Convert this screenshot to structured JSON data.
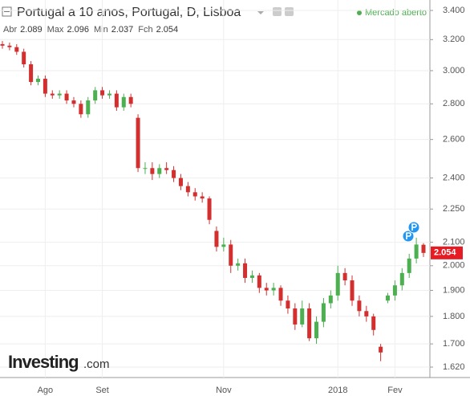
{
  "chart_data": {
    "type": "candlestick",
    "title": "Portugal a 10 anos, Portugal, D, Lisboa",
    "status": "Mercado aberto",
    "ohlc_labels": [
      "Abr",
      "Max",
      "Min",
      "Fch"
    ],
    "watermark": "Investing",
    "watermark_suffix": ".com",
    "log_scale": true,
    "grid": true,
    "up_color": "#4caf50",
    "down_color": "#d32f2f",
    "ylim": [
      1.62,
      3.4
    ],
    "yticks": [
      {
        "value": 3.4,
        "label": "3.400"
      },
      {
        "value": 3.2,
        "label": "3.200"
      },
      {
        "value": 3,
        "label": "3.000"
      },
      {
        "value": 2.8,
        "label": "2.800"
      },
      {
        "value": 2.6,
        "label": "2.600"
      },
      {
        "value": 2.4,
        "label": "2.400"
      },
      {
        "value": 2.25,
        "label": "2.250"
      },
      {
        "value": 2.1,
        "label": "2.100"
      },
      {
        "value": 2,
        "label": "2.000"
      },
      {
        "value": 1.9,
        "label": "1.900"
      },
      {
        "value": 1.8,
        "label": "1.800"
      },
      {
        "value": 1.7,
        "label": "1.700"
      },
      {
        "value": 1.62,
        "label": "1.620"
      }
    ],
    "categories": [
      null,
      null,
      null,
      null,
      null,
      null,
      "Ago",
      null,
      null,
      null,
      null,
      null,
      null,
      null,
      "Set",
      null,
      null,
      null,
      null,
      null,
      null,
      null,
      null,
      null,
      null,
      null,
      null,
      null,
      null,
      null,
      null,
      "Nov",
      null,
      null,
      null,
      null,
      null,
      null,
      null,
      null,
      null,
      null,
      null,
      null,
      null,
      null,
      null,
      "2018",
      null,
      null,
      null,
      null,
      null,
      null,
      null,
      "Fev",
      null,
      null,
      null,
      null
    ],
    "open": [
      3.17,
      3.16,
      3.15,
      3.12,
      3.04,
      2.93,
      2.95,
      2.86,
      2.85,
      2.86,
      2.82,
      2.8,
      2.74,
      2.82,
      2.88,
      2.85,
      2.86,
      2.78,
      2.84,
      2.72,
      2.45,
      2.45,
      2.42,
      2.45,
      2.44,
      2.4,
      2.36,
      2.33,
      2.31,
      2.3,
      2.15,
      2.08,
      2.09,
      2.0,
      2.01,
      1.95,
      1.96,
      1.91,
      1.9,
      1.91,
      1.86,
      1.83,
      1.77,
      1.83,
      1.72,
      1.78,
      1.85,
      1.88,
      1.97,
      1.94,
      1.86,
      1.82,
      1.8,
      1.69,
      1.86,
      1.88,
      1.92,
      1.97,
      2.03,
      2.089
    ],
    "high": [
      3.19,
      3.18,
      3.17,
      3.14,
      3.06,
      2.97,
      2.97,
      2.88,
      2.88,
      2.88,
      2.84,
      2.82,
      2.84,
      2.9,
      2.9,
      2.88,
      2.88,
      2.86,
      2.86,
      2.74,
      2.48,
      2.48,
      2.47,
      2.48,
      2.46,
      2.42,
      2.38,
      2.35,
      2.33,
      2.31,
      2.17,
      2.12,
      2.11,
      2.03,
      2.03,
      1.98,
      1.97,
      1.93,
      1.93,
      1.92,
      1.88,
      1.85,
      1.86,
      1.85,
      1.8,
      1.87,
      1.9,
      2.0,
      1.99,
      1.96,
      1.88,
      1.84,
      1.81,
      1.7,
      1.89,
      1.94,
      1.99,
      2.05,
      2.12,
      2.096
    ],
    "low": [
      3.14,
      3.13,
      3.1,
      3.02,
      2.91,
      2.91,
      2.84,
      2.83,
      2.83,
      2.8,
      2.78,
      2.72,
      2.72,
      2.8,
      2.83,
      2.83,
      2.76,
      2.76,
      2.78,
      2.43,
      2.42,
      2.39,
      2.4,
      2.42,
      2.38,
      2.34,
      2.31,
      2.29,
      2.28,
      2.18,
      2.06,
      2.06,
      1.97,
      1.98,
      1.93,
      1.93,
      1.89,
      1.88,
      1.88,
      1.84,
      1.81,
      1.75,
      1.76,
      1.71,
      1.7,
      1.76,
      1.83,
      1.86,
      1.92,
      1.84,
      1.8,
      1.78,
      1.73,
      1.64,
      1.85,
      1.86,
      1.9,
      1.95,
      2.01,
      2.037
    ],
    "close": [
      3.16,
      3.15,
      3.12,
      3.04,
      2.93,
      2.95,
      2.86,
      2.85,
      2.86,
      2.82,
      2.8,
      2.74,
      2.82,
      2.88,
      2.85,
      2.86,
      2.78,
      2.84,
      2.8,
      2.45,
      2.45,
      2.42,
      2.45,
      2.44,
      2.4,
      2.36,
      2.33,
      2.31,
      2.3,
      2.2,
      2.08,
      2.09,
      2.0,
      2.01,
      1.95,
      1.96,
      1.91,
      1.9,
      1.91,
      1.86,
      1.83,
      1.77,
      1.83,
      1.72,
      1.78,
      1.85,
      1.88,
      1.97,
      1.94,
      1.86,
      1.82,
      1.8,
      1.75,
      1.67,
      1.88,
      1.92,
      1.97,
      2.03,
      2.09,
      2.054
    ]
  }
}
